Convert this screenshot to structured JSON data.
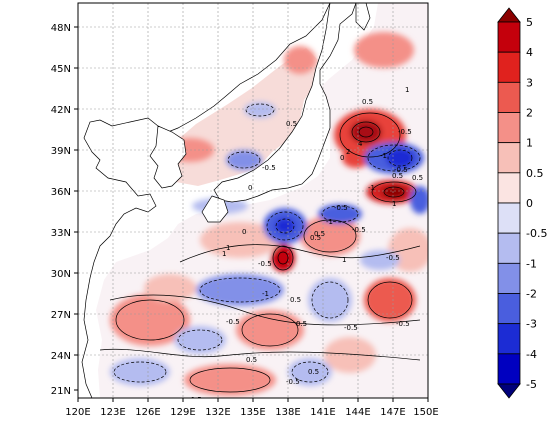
{
  "map": {
    "lat_labels": [
      "48N",
      "45N",
      "42N",
      "39N",
      "36N",
      "33N",
      "30N",
      "27N",
      "24N",
      "21N"
    ],
    "lon_labels": [
      "120E",
      "123E",
      "126E",
      "129E",
      "132E",
      "135E",
      "138E",
      "141E",
      "144E",
      "147E",
      "150E"
    ],
    "contour_labels": [
      "1",
      "0.5",
      "-0.5",
      "-1",
      "4",
      "2",
      "0",
      "-0.5",
      "0.5",
      "-1",
      "1",
      "-0.5",
      "0.5",
      "1",
      "-0.5",
      "1",
      "-0.5",
      "0.5",
      "0",
      "-1",
      "-0.5",
      "0.5",
      "-0.5",
      "-0.5",
      "0.5",
      "0.5",
      "-0.5",
      "0",
      "1",
      "-0.5",
      "0.5",
      "0.5",
      "-1",
      "-0.5",
      "0.5",
      "-0.5",
      "1"
    ]
  },
  "colorbar": {
    "labels": [
      "5",
      "4",
      "3",
      "2",
      "1",
      "0.5",
      "0",
      "-0.5",
      "-1",
      "-2",
      "-3",
      "-4",
      "-5"
    ],
    "colors": [
      "#8b0000",
      "#c4000c",
      "#e0221e",
      "#ec5a50",
      "#f49088",
      "#f7c0b8",
      "#fbe4e2",
      "#dde0f7",
      "#b4bcf0",
      "#8290e8",
      "#4a5ede",
      "#1c2cd4",
      "#0000c0",
      "#00007a"
    ]
  },
  "colors": {
    "land": "#ffffff",
    "ocean_neutral": "#f8f6f9",
    "warm": "#f2a19c",
    "cool": "#b0b8ee"
  }
}
